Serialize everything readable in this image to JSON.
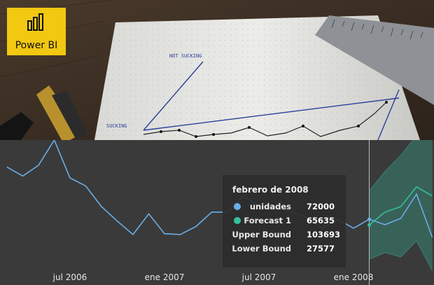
{
  "brand": {
    "name": "Power BI",
    "icon": "power-bi-icon",
    "background_color": "#f2c811"
  },
  "header_image": {
    "description": "notebook-with-hand-drawn-chart-photo",
    "hand_labels": [
      "NOT SUCKING",
      "SUCKING"
    ]
  },
  "tooltip": {
    "title": "febrero de 2008",
    "rows": [
      {
        "label": "unidades",
        "value": "72000",
        "color": "#6aaee6"
      },
      {
        "label": "Forecast 1",
        "value": "65635",
        "color": "#35c0a0"
      },
      {
        "label": "Upper Bound",
        "value": "103693"
      },
      {
        "label": "Lower Bound",
        "value": "27577"
      }
    ]
  },
  "chart_data": {
    "type": "line",
    "x_tick_labels": [
      "jul 2006",
      "ene 2007",
      "jul 2007",
      "ene 2008"
    ],
    "series": [
      {
        "name": "unidades",
        "color": "#6aaee6",
        "x": [
          "2006-03",
          "2006-04",
          "2006-05",
          "2006-06",
          "2006-07",
          "2006-08",
          "2006-09",
          "2006-10",
          "2006-11",
          "2006-12",
          "2007-01",
          "2007-02",
          "2007-03",
          "2007-04",
          "2007-05",
          "2007-06",
          "2007-07",
          "2007-08",
          "2007-09",
          "2007-10",
          "2007-11",
          "2007-12",
          "2008-01",
          "2008-02",
          "2008-03",
          "2008-04",
          "2008-05",
          "2008-06"
        ],
        "values": [
          130000,
          120000,
          132000,
          160000,
          118000,
          109000,
          86000,
          70000,
          55000,
          78000,
          56000,
          55000,
          64000,
          80000,
          80000,
          98000,
          87000,
          84000,
          81000,
          74000,
          62000,
          72000,
          62000,
          72000,
          66000,
          73000,
          100000,
          52000
        ]
      },
      {
        "name": "Forecast 1",
        "color": "#35c0a0",
        "x": [
          "2008-02",
          "2008-03",
          "2008-04",
          "2008-05",
          "2008-06"
        ],
        "values": [
          65635,
          80000,
          86000,
          108000,
          98000
        ]
      }
    ],
    "bounds": {
      "color": "#35c0a0",
      "x": [
        "2008-02",
        "2008-03",
        "2008-04",
        "2008-05",
        "2008-06"
      ],
      "upper": [
        103693,
        125000,
        143000,
        165000,
        178000
      ],
      "lower": [
        27577,
        35000,
        30000,
        48000,
        15000
      ]
    },
    "hover_x": "2008-02",
    "x_range": [
      "2006-03",
      "2008-06"
    ],
    "ylim": [
      20000,
      160000
    ],
    "grid": false,
    "legend": "none"
  }
}
